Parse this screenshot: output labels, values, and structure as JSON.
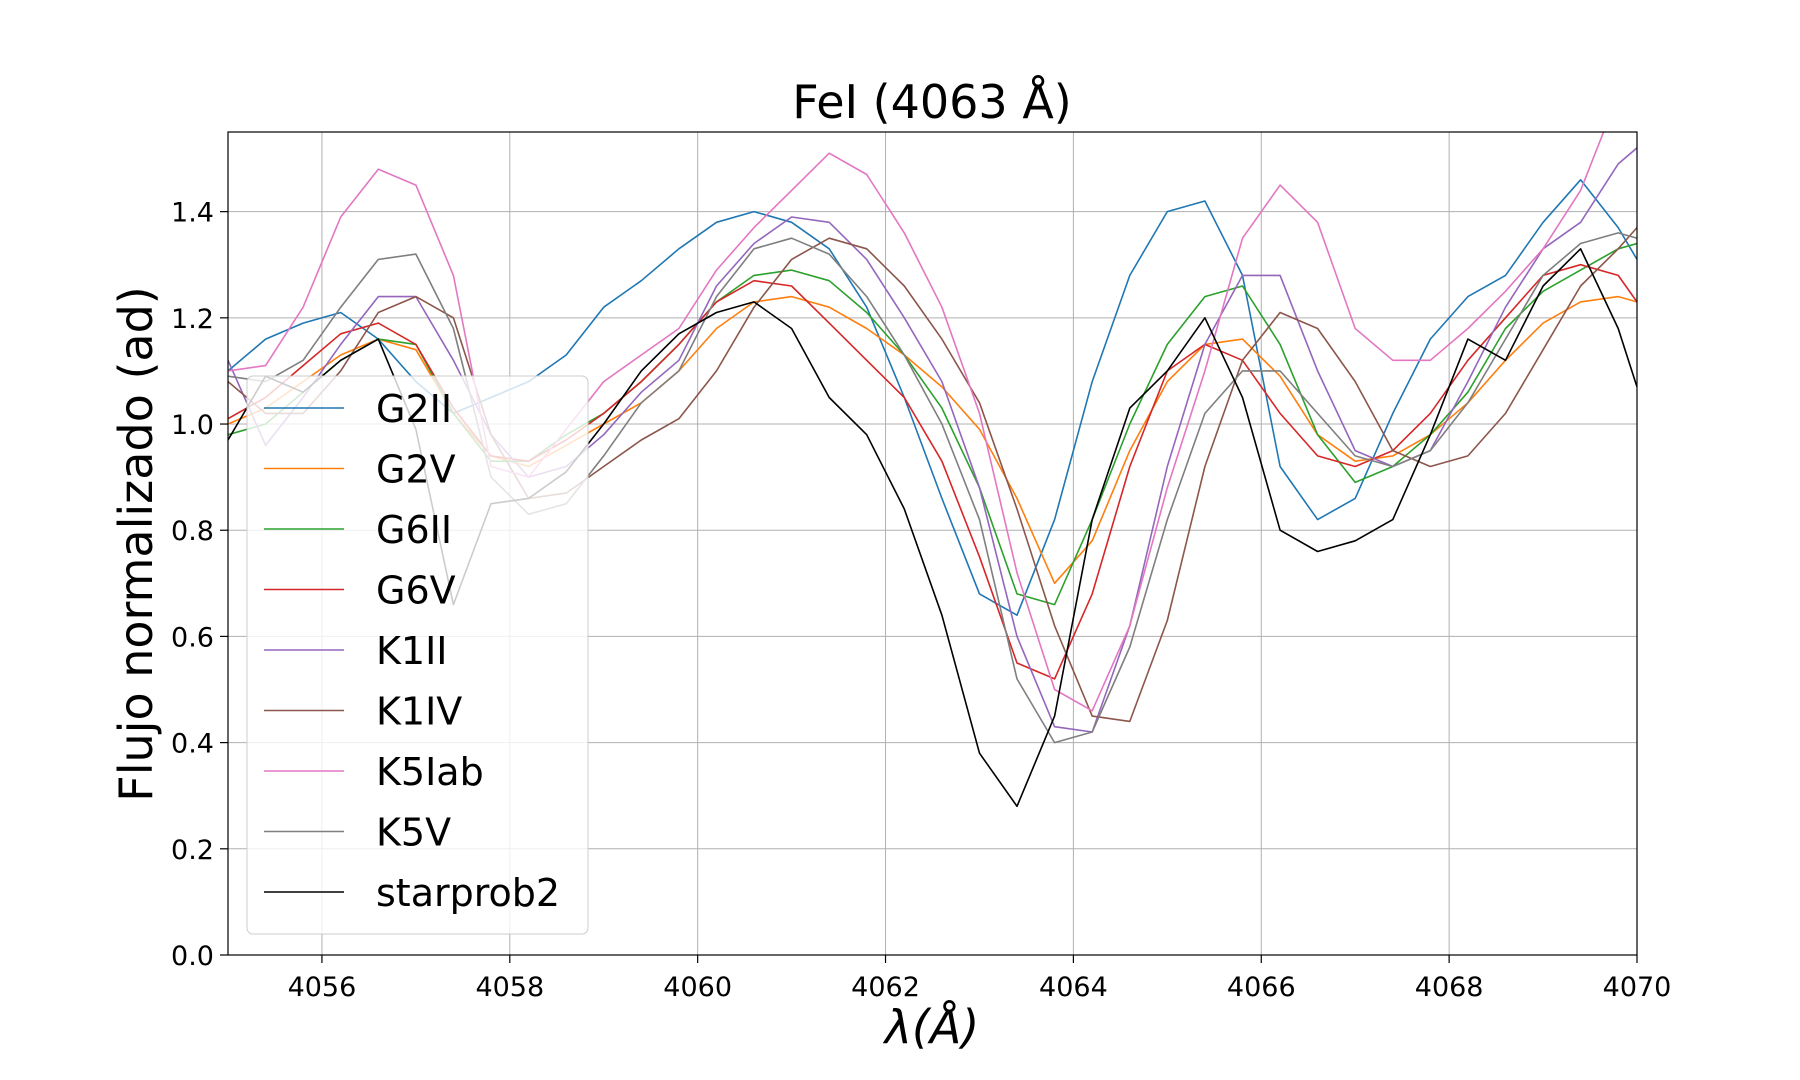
{
  "chart_data": {
    "type": "line",
    "title": "FeI (4063 Å)",
    "xlabel": "λ(Å)",
    "ylabel": "Flujo normalizado (ad)",
    "xlim": [
      4055,
      4070
    ],
    "ylim": [
      0.0,
      1.55
    ],
    "xticks": [
      4056,
      4058,
      4060,
      4062,
      4064,
      4066,
      4068,
      4070
    ],
    "xtick_labels": [
      "4056",
      "4058",
      "4060",
      "4062",
      "4064",
      "4066",
      "4068",
      "4070"
    ],
    "yticks": [
      0.0,
      0.2,
      0.4,
      0.6,
      0.8,
      1.0,
      1.2,
      1.4
    ],
    "ytick_labels": [
      "0.0",
      "0.2",
      "0.4",
      "0.6",
      "0.8",
      "1.0",
      "1.2",
      "1.4"
    ],
    "grid": true,
    "legend_position": "center-left",
    "x": [
      4055.0,
      4055.4,
      4055.8,
      4056.2,
      4056.6,
      4057.0,
      4057.4,
      4057.8,
      4058.2,
      4058.6,
      4059.0,
      4059.4,
      4059.8,
      4060.2,
      4060.6,
      4061.0,
      4061.4,
      4061.8,
      4062.2,
      4062.6,
      4063.0,
      4063.4,
      4063.8,
      4064.2,
      4064.6,
      4065.0,
      4065.4,
      4065.8,
      4066.2,
      4066.6,
      4067.0,
      4067.4,
      4067.8,
      4068.2,
      4068.6,
      4069.0,
      4069.4,
      4069.8,
      4070.0
    ],
    "series": [
      {
        "name": "G2II",
        "color": "#1f77b4",
        "values": [
          1.1,
          1.16,
          1.19,
          1.21,
          1.16,
          1.08,
          1.02,
          1.05,
          1.08,
          1.13,
          1.22,
          1.27,
          1.33,
          1.38,
          1.4,
          1.38,
          1.33,
          1.22,
          1.05,
          0.86,
          0.68,
          0.64,
          0.82,
          1.08,
          1.28,
          1.4,
          1.42,
          1.28,
          0.92,
          0.82,
          0.86,
          1.02,
          1.16,
          1.24,
          1.28,
          1.38,
          1.46,
          1.37,
          1.31
        ]
      },
      {
        "name": "G2V",
        "color": "#ff7f0e",
        "values": [
          1.0,
          1.03,
          1.08,
          1.13,
          1.16,
          1.14,
          1.02,
          0.94,
          0.92,
          0.96,
          1.0,
          1.04,
          1.1,
          1.18,
          1.23,
          1.24,
          1.22,
          1.18,
          1.13,
          1.07,
          0.99,
          0.86,
          0.7,
          0.78,
          0.95,
          1.08,
          1.15,
          1.16,
          1.09,
          0.98,
          0.93,
          0.94,
          0.98,
          1.04,
          1.12,
          1.19,
          1.23,
          1.24,
          1.23
        ]
      },
      {
        "name": "G6II",
        "color": "#2ca02c",
        "values": [
          0.98,
          1.0,
          1.06,
          1.12,
          1.16,
          1.15,
          1.02,
          0.93,
          0.93,
          0.98,
          1.02,
          1.08,
          1.15,
          1.23,
          1.28,
          1.29,
          1.27,
          1.21,
          1.13,
          1.03,
          0.88,
          0.68,
          0.66,
          0.82,
          1.0,
          1.15,
          1.24,
          1.26,
          1.15,
          0.98,
          0.89,
          0.92,
          0.98,
          1.06,
          1.18,
          1.25,
          1.29,
          1.33,
          1.34
        ]
      },
      {
        "name": "G6V",
        "color": "#d62728",
        "values": [
          1.01,
          1.05,
          1.11,
          1.17,
          1.19,
          1.15,
          1.03,
          0.94,
          0.93,
          0.97,
          1.02,
          1.08,
          1.15,
          1.23,
          1.27,
          1.26,
          1.19,
          1.12,
          1.05,
          0.93,
          0.75,
          0.55,
          0.52,
          0.68,
          0.92,
          1.1,
          1.15,
          1.12,
          1.02,
          0.94,
          0.92,
          0.95,
          1.02,
          1.12,
          1.2,
          1.28,
          1.3,
          1.28,
          1.23
        ]
      },
      {
        "name": "K1II",
        "color": "#9467bd",
        "values": [
          1.12,
          0.96,
          1.05,
          1.15,
          1.24,
          1.24,
          1.12,
          0.98,
          0.9,
          0.92,
          0.98,
          1.06,
          1.12,
          1.26,
          1.34,
          1.39,
          1.38,
          1.31,
          1.2,
          1.08,
          0.88,
          0.6,
          0.43,
          0.42,
          0.62,
          0.92,
          1.15,
          1.28,
          1.28,
          1.1,
          0.95,
          0.92,
          0.95,
          1.08,
          1.22,
          1.33,
          1.38,
          1.49,
          1.52
        ]
      },
      {
        "name": "K1IV",
        "color": "#8c564b",
        "values": [
          1.08,
          1.02,
          1.02,
          1.1,
          1.21,
          1.24,
          1.2,
          0.98,
          0.86,
          0.87,
          0.92,
          0.97,
          1.01,
          1.1,
          1.22,
          1.31,
          1.35,
          1.33,
          1.26,
          1.16,
          1.04,
          0.84,
          0.62,
          0.45,
          0.44,
          0.63,
          0.92,
          1.12,
          1.21,
          1.18,
          1.08,
          0.95,
          0.92,
          0.94,
          1.02,
          1.14,
          1.26,
          1.33,
          1.37
        ]
      },
      {
        "name": "K5Iab",
        "color": "#e377c2",
        "values": [
          1.1,
          1.11,
          1.22,
          1.39,
          1.48,
          1.45,
          1.28,
          0.92,
          0.9,
          0.99,
          1.08,
          1.13,
          1.18,
          1.29,
          1.37,
          1.44,
          1.51,
          1.47,
          1.36,
          1.22,
          1.02,
          0.72,
          0.5,
          0.46,
          0.62,
          0.88,
          1.1,
          1.35,
          1.45,
          1.38,
          1.18,
          1.12,
          1.12,
          1.18,
          1.25,
          1.33,
          1.44,
          1.62,
          1.72
        ]
      },
      {
        "name": "K5V",
        "color": "#7f7f7f",
        "values": [
          1.09,
          1.08,
          1.12,
          1.22,
          1.31,
          1.32,
          1.18,
          0.9,
          0.83,
          0.85,
          0.94,
          1.04,
          1.1,
          1.24,
          1.33,
          1.35,
          1.32,
          1.24,
          1.13,
          1.0,
          0.82,
          0.52,
          0.4,
          0.42,
          0.58,
          0.82,
          1.02,
          1.1,
          1.1,
          1.02,
          0.94,
          0.92,
          0.95,
          1.04,
          1.16,
          1.28,
          1.34,
          1.36,
          1.35
        ]
      },
      {
        "name": "starprob2",
        "color": "#000000",
        "values": [
          0.97,
          1.09,
          1.06,
          1.12,
          1.16,
          0.99,
          0.66,
          0.85,
          0.86,
          0.91,
          1.0,
          1.1,
          1.17,
          1.21,
          1.23,
          1.18,
          1.05,
          0.98,
          0.84,
          0.64,
          0.38,
          0.28,
          0.45,
          0.82,
          1.03,
          1.1,
          1.2,
          1.05,
          0.8,
          0.76,
          0.78,
          0.82,
          0.98,
          1.16,
          1.12,
          1.26,
          1.33,
          1.18,
          1.07
        ]
      }
    ]
  }
}
